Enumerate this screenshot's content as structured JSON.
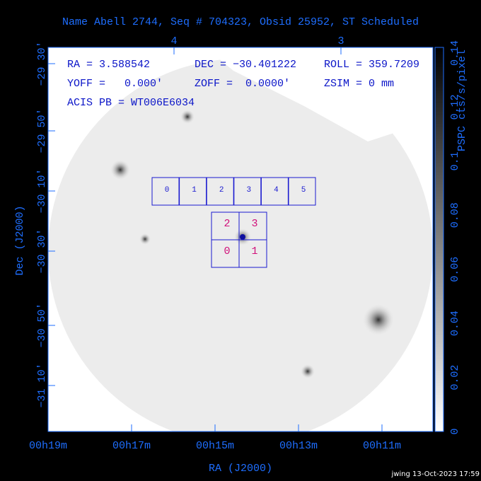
{
  "title": "Name Abell 2744, Seq # 704323, Obsid 25952, ST Scheduled",
  "info": [
    "RA = 3.588542",
    "DEC = −30.401222",
    "ROLL = 359.7209",
    "YOFF =   0.000'",
    "ZOFF =  0.0000'",
    "ZSIM = 0 mm",
    "ACIS PB = WT006E6034"
  ],
  "acis_s_chips": [
    "0",
    "1",
    "2",
    "3",
    "4",
    "5"
  ],
  "acis_i_chips": [
    "2",
    "3",
    "0",
    "1"
  ],
  "x_axis": {
    "label": "RA (J2000)",
    "ticks": [
      "00h19m",
      "00h17m",
      "00h15m",
      "00h13m",
      "00h11m"
    ],
    "top_ticks": [
      "4",
      "3"
    ]
  },
  "y_axis": {
    "label": "Dec (J2000)",
    "ticks": [
      "−29 30'",
      "−29 50'",
      "−30 10'",
      "−30 30'",
      "−30 50'",
      "−31 10'"
    ]
  },
  "colorbar": {
    "label": "PSPC cts/s/pixel",
    "ticks": [
      "0",
      "0.02",
      "0.04",
      "0.06",
      "0.08",
      "0.1",
      "0.12",
      "0.14"
    ]
  },
  "footer": "jwing 13-Oct-2023 17:59"
}
